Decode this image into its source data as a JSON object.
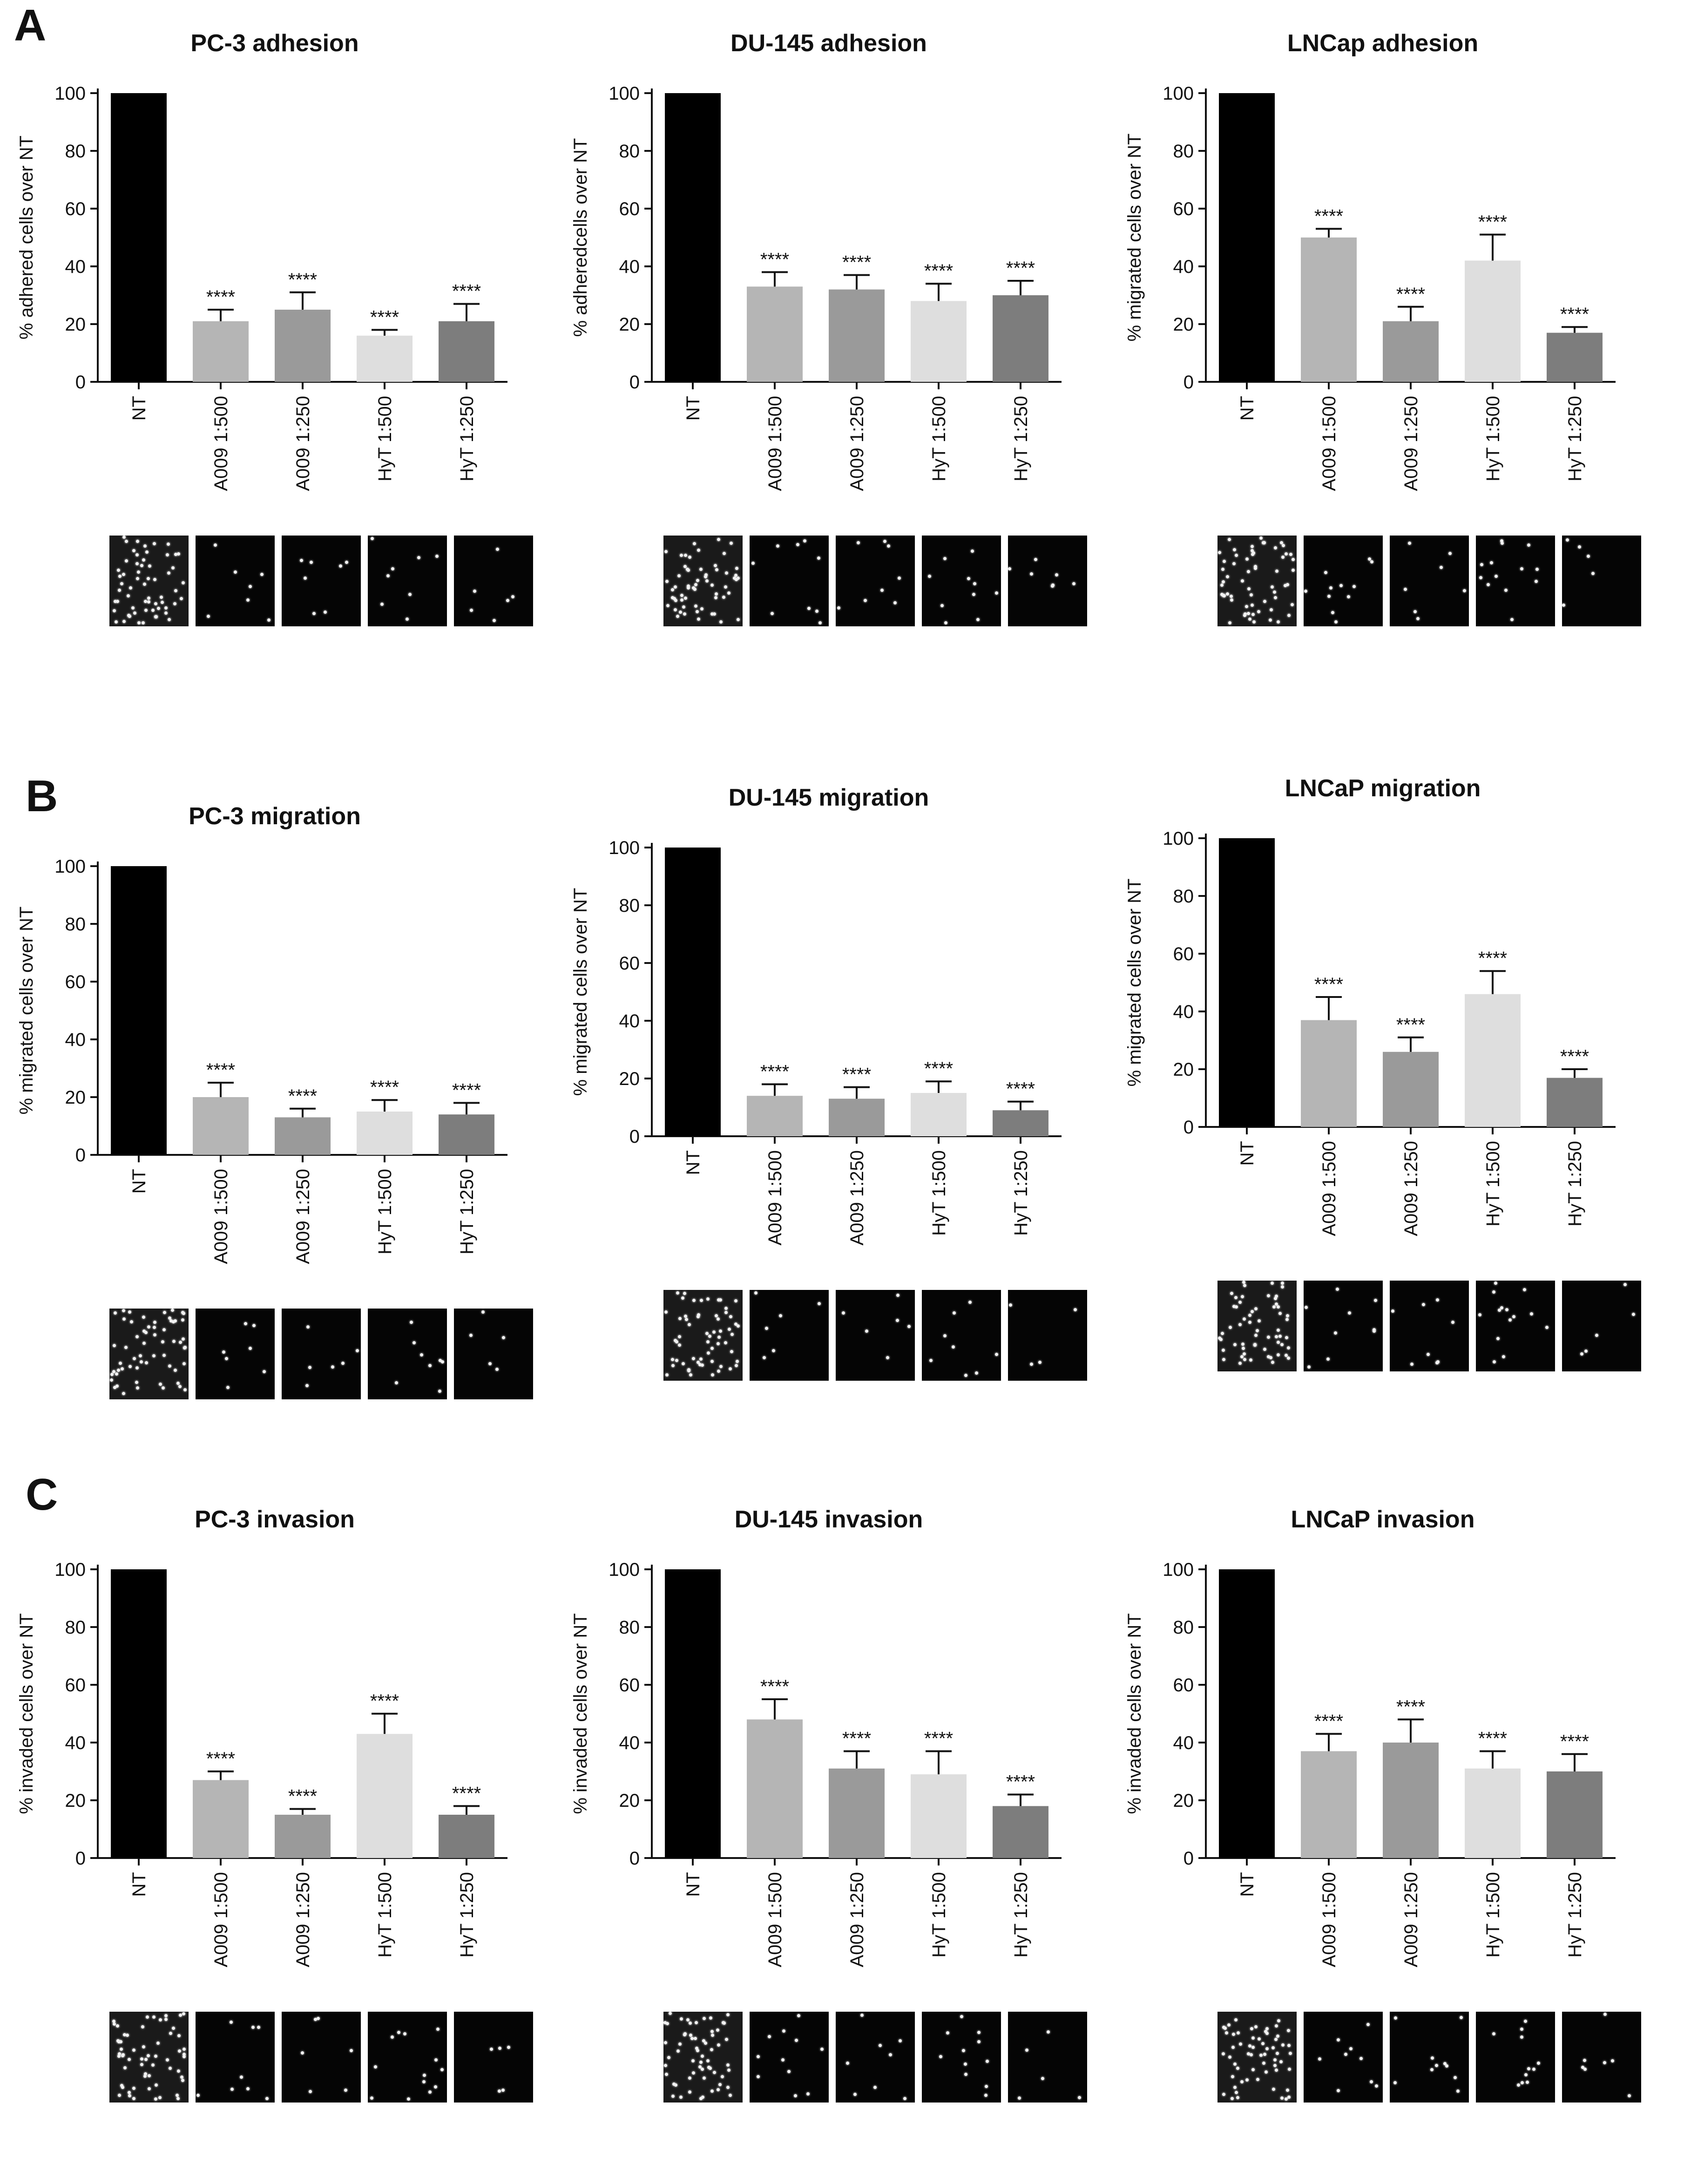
{
  "figure": {
    "row_labels": [
      "A",
      "B",
      "C"
    ]
  },
  "chart_data": [
    {
      "id": "pc3-adhesion",
      "row": 0,
      "col": 0,
      "type": "bar",
      "title": "PC-3 adhesion",
      "ylabel": "% adhered cells over NT",
      "xlabel": "",
      "ylim": [
        0,
        100
      ],
      "yticks": [
        0,
        20,
        40,
        60,
        80,
        100
      ],
      "categories": [
        "NT",
        "A009 1:500",
        "A009 1:250",
        "HyT 1:500",
        "HyT 1:250"
      ],
      "values": [
        100,
        21,
        25,
        16,
        21
      ],
      "errors": [
        0,
        4,
        6,
        2,
        6
      ],
      "significance": [
        "",
        "****",
        "****",
        "****",
        "****"
      ],
      "bar_colors": [
        "#000000",
        "#b5b5b5",
        "#9a9a9a",
        "#dedede",
        "#7d7d7d"
      ]
    },
    {
      "id": "du145-adhesion",
      "row": 0,
      "col": 1,
      "type": "bar",
      "title": "DU-145 adhesion",
      "ylabel": "% adheredcells over NT",
      "xlabel": "",
      "ylim": [
        0,
        100
      ],
      "yticks": [
        0,
        20,
        40,
        60,
        80,
        100
      ],
      "categories": [
        "NT",
        "A009 1:500",
        "A009 1:250",
        "HyT 1:500",
        "HyT 1:250"
      ],
      "values": [
        100,
        33,
        32,
        28,
        30
      ],
      "errors": [
        0,
        5,
        5,
        6,
        5
      ],
      "significance": [
        "",
        "****",
        "****",
        "****",
        "****"
      ],
      "bar_colors": [
        "#000000",
        "#b5b5b5",
        "#9a9a9a",
        "#dedede",
        "#7d7d7d"
      ]
    },
    {
      "id": "lncap-adhesion",
      "row": 0,
      "col": 2,
      "type": "bar",
      "title": "LNCap adhesion",
      "ylabel": "% migrated cells over NT",
      "xlabel": "",
      "ylim": [
        0,
        100
      ],
      "yticks": [
        0,
        20,
        40,
        60,
        80,
        100
      ],
      "categories": [
        "NT",
        "A009 1:500",
        "A009 1:250",
        "HyT 1:500",
        "HyT 1:250"
      ],
      "values": [
        100,
        50,
        21,
        42,
        17
      ],
      "errors": [
        0,
        3,
        5,
        9,
        2
      ],
      "significance": [
        "",
        "****",
        "****",
        "****",
        "****"
      ],
      "bar_colors": [
        "#000000",
        "#b5b5b5",
        "#9a9a9a",
        "#dedede",
        "#7d7d7d"
      ]
    },
    {
      "id": "pc3-migration",
      "row": 1,
      "col": 0,
      "type": "bar",
      "title": "PC-3 migration",
      "ylabel": "% migrated cells over NT",
      "xlabel": "",
      "ylim": [
        0,
        100
      ],
      "yticks": [
        0,
        20,
        40,
        60,
        80,
        100
      ],
      "categories": [
        "NT",
        "A009 1:500",
        "A009 1:250",
        "HyT 1:500",
        "HyT 1:250"
      ],
      "values": [
        100,
        20,
        13,
        15,
        14
      ],
      "errors": [
        0,
        5,
        3,
        4,
        4
      ],
      "significance": [
        "",
        "****",
        "****",
        "****",
        "****"
      ],
      "bar_colors": [
        "#000000",
        "#b5b5b5",
        "#9a9a9a",
        "#dedede",
        "#7d7d7d"
      ]
    },
    {
      "id": "du145-migration",
      "row": 1,
      "col": 1,
      "type": "bar",
      "title": "DU-145 migration",
      "ylabel": "% migrated cells over NT",
      "xlabel": "",
      "ylim": [
        0,
        100
      ],
      "yticks": [
        0,
        20,
        40,
        60,
        80,
        100
      ],
      "categories": [
        "NT",
        "A009 1:500",
        "A009 1:250",
        "HyT 1:500",
        "HyT 1:250"
      ],
      "values": [
        100,
        14,
        13,
        15,
        9
      ],
      "errors": [
        0,
        4,
        4,
        4,
        3
      ],
      "significance": [
        "",
        "****",
        "****",
        "****",
        "****"
      ],
      "bar_colors": [
        "#000000",
        "#b5b5b5",
        "#9a9a9a",
        "#dedede",
        "#7d7d7d"
      ]
    },
    {
      "id": "lncap-migration",
      "row": 1,
      "col": 2,
      "type": "bar",
      "title": "LNCaP migration",
      "ylabel": "% migrated cells over NT",
      "xlabel": "",
      "ylim": [
        0,
        100
      ],
      "yticks": [
        0,
        20,
        40,
        60,
        80,
        100
      ],
      "categories": [
        "NT",
        "A009 1:500",
        "A009 1:250",
        "HyT 1:500",
        "HyT 1:250"
      ],
      "values": [
        100,
        37,
        26,
        46,
        17
      ],
      "errors": [
        0,
        8,
        5,
        8,
        3
      ],
      "significance": [
        "",
        "****",
        "****",
        "****",
        "****"
      ],
      "bar_colors": [
        "#000000",
        "#b5b5b5",
        "#9a9a9a",
        "#dedede",
        "#7d7d7d"
      ]
    },
    {
      "id": "pc3-invasion",
      "row": 2,
      "col": 0,
      "type": "bar",
      "title": "PC-3 invasion",
      "ylabel": "% invaded cells over NT",
      "xlabel": "",
      "ylim": [
        0,
        100
      ],
      "yticks": [
        0,
        20,
        40,
        60,
        80,
        100
      ],
      "categories": [
        "NT",
        "A009 1:500",
        "A009 1:250",
        "HyT 1:500",
        "HyT 1:250"
      ],
      "values": [
        100,
        27,
        15,
        43,
        15
      ],
      "errors": [
        0,
        3,
        2,
        7,
        3
      ],
      "significance": [
        "",
        "****",
        "****",
        "****",
        "****"
      ],
      "bar_colors": [
        "#000000",
        "#b5b5b5",
        "#9a9a9a",
        "#dedede",
        "#7d7d7d"
      ]
    },
    {
      "id": "du145-invasion",
      "row": 2,
      "col": 1,
      "type": "bar",
      "title": "DU-145 invasion",
      "ylabel": "% invaded cells over NT",
      "xlabel": "",
      "ylim": [
        0,
        100
      ],
      "yticks": [
        0,
        20,
        40,
        60,
        80,
        100
      ],
      "categories": [
        "NT",
        "A009 1:500",
        "A009 1:250",
        "HyT 1:500",
        "HyT 1:250"
      ],
      "values": [
        100,
        48,
        31,
        29,
        18
      ],
      "errors": [
        0,
        7,
        6,
        8,
        4
      ],
      "significance": [
        "",
        "****",
        "****",
        "****",
        "****"
      ],
      "bar_colors": [
        "#000000",
        "#b5b5b5",
        "#9a9a9a",
        "#dedede",
        "#7d7d7d"
      ]
    },
    {
      "id": "lncap-invasion",
      "row": 2,
      "col": 2,
      "type": "bar",
      "title": "LNCaP invasion",
      "ylabel": "% invaded cells over NT",
      "xlabel": "",
      "ylim": [
        0,
        100
      ],
      "yticks": [
        0,
        20,
        40,
        60,
        80,
        100
      ],
      "categories": [
        "NT",
        "A009 1:500",
        "A009 1:250",
        "HyT 1:500",
        "HyT 1:250"
      ],
      "values": [
        100,
        37,
        40,
        31,
        30
      ],
      "errors": [
        0,
        6,
        8,
        6,
        6
      ],
      "significance": [
        "",
        "****",
        "****",
        "****",
        "****"
      ],
      "bar_colors": [
        "#000000",
        "#b5b5b5",
        "#9a9a9a",
        "#dedede",
        "#7d7d7d"
      ]
    }
  ]
}
